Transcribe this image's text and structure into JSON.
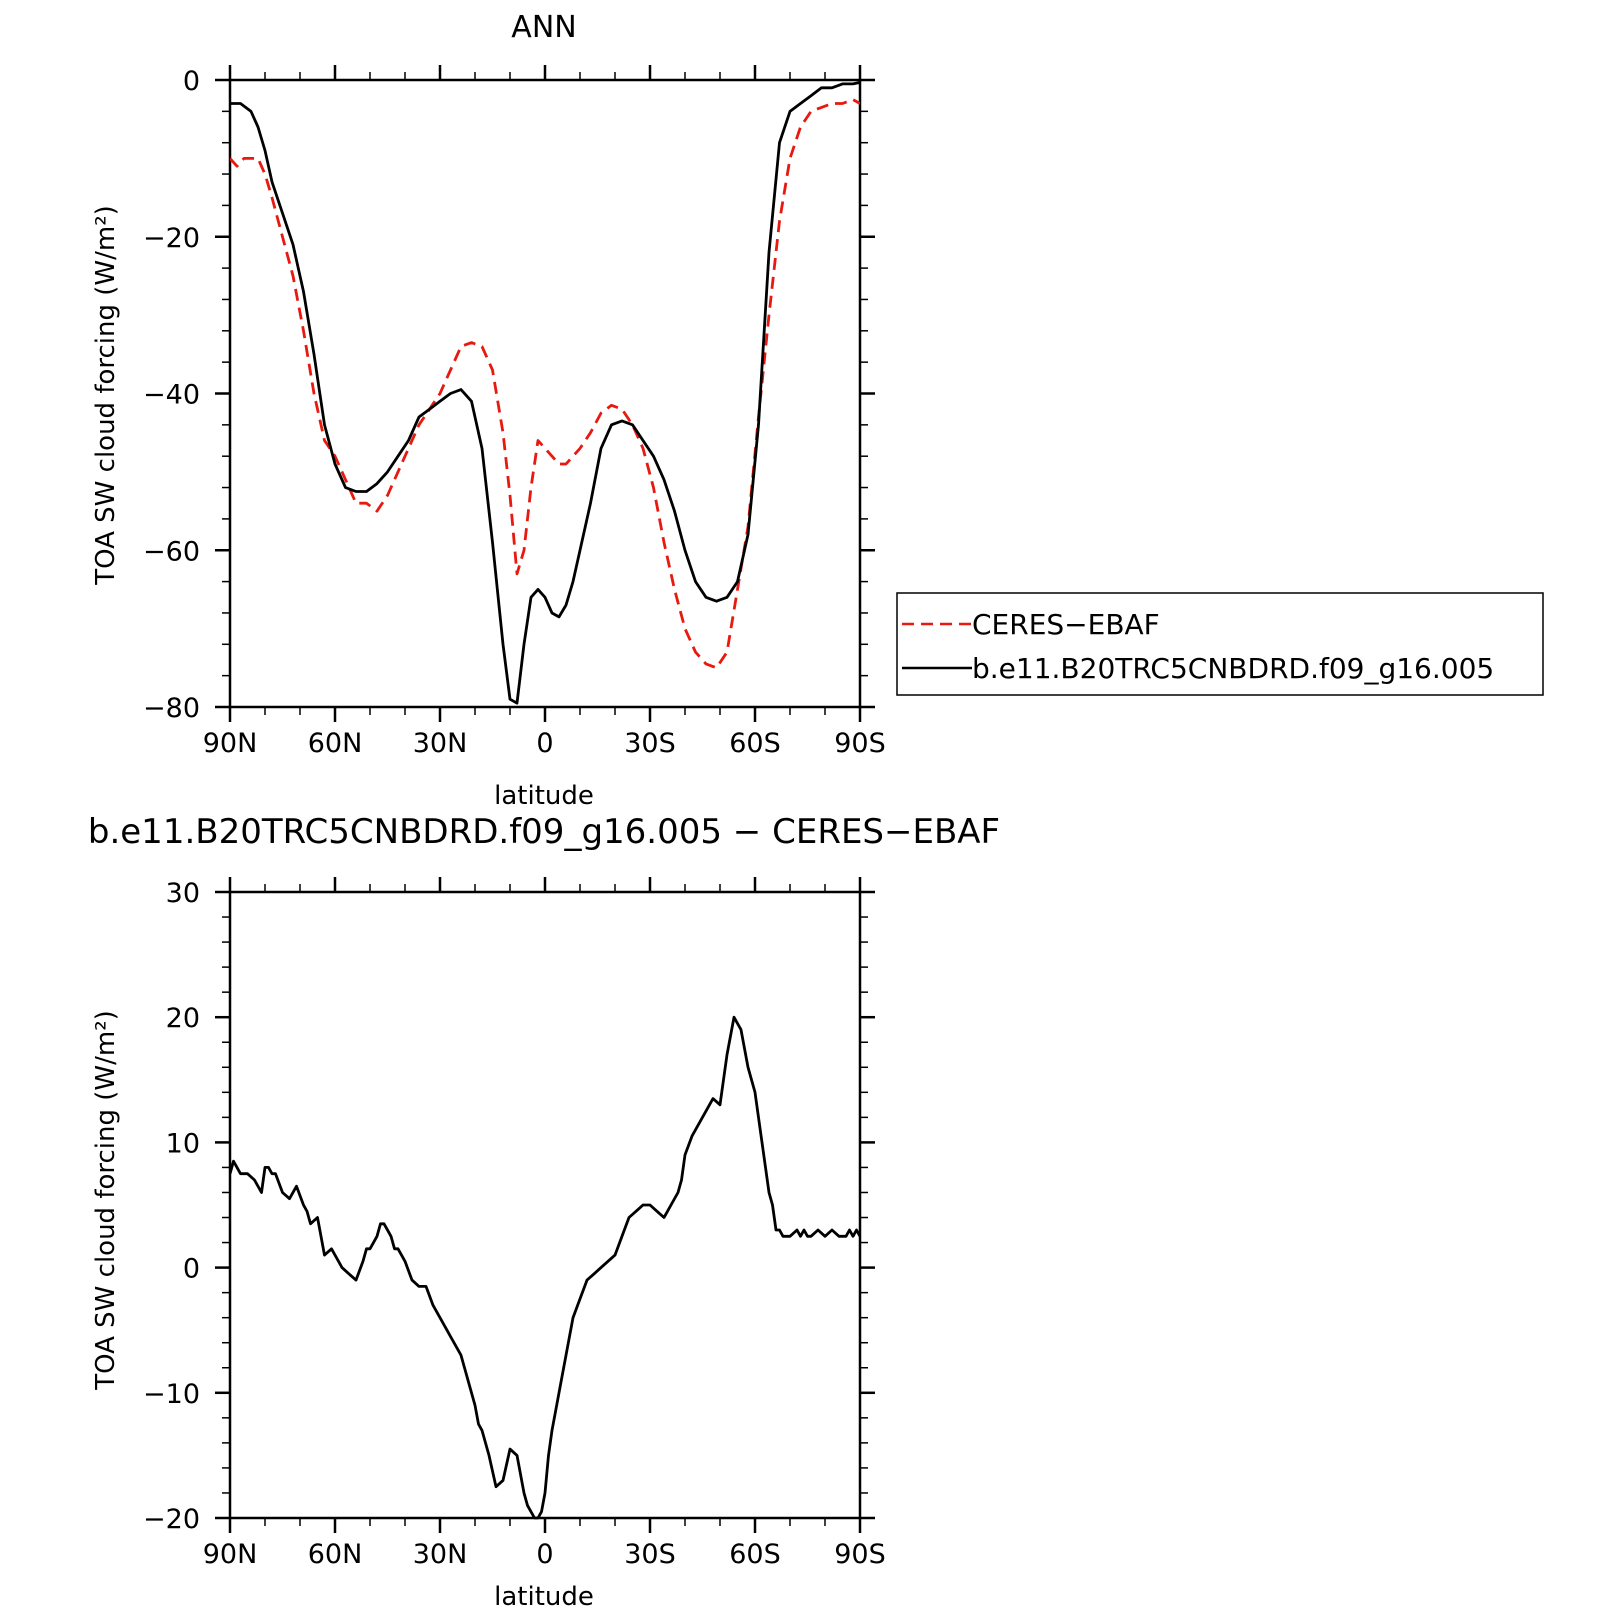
{
  "chart_data": [
    {
      "type": "line",
      "title": "ANN",
      "xlabel": "latitude",
      "ylabel": "TOA SW cloud forcing (W/m²)",
      "xlim": [
        90,
        -90
      ],
      "ylim": [
        -80,
        0
      ],
      "xticks": [
        {
          "value": 90,
          "label": "90N"
        },
        {
          "value": 60,
          "label": "60N"
        },
        {
          "value": 30,
          "label": "30N"
        },
        {
          "value": 0,
          "label": "0"
        },
        {
          "value": -30,
          "label": "30S"
        },
        {
          "value": -60,
          "label": "60S"
        },
        {
          "value": -90,
          "label": "90S"
        }
      ],
      "yticks": [
        {
          "value": 0,
          "label": "0"
        },
        {
          "value": -20,
          "label": "−20"
        },
        {
          "value": -40,
          "label": "−40"
        },
        {
          "value": -60,
          "label": "−60"
        },
        {
          "value": -80,
          "label": "−80"
        }
      ],
      "legend_position": "right",
      "series": [
        {
          "name": "CERES−EBAF",
          "color": "#e8190f",
          "dash": "dashed",
          "x": [
            90,
            88,
            86,
            84,
            82,
            80,
            78,
            75,
            72,
            69,
            66,
            63,
            60,
            57,
            54,
            51,
            48,
            45,
            42,
            39,
            36,
            33,
            30,
            27,
            24,
            21,
            18,
            15,
            12,
            10,
            8,
            6,
            4,
            2,
            0,
            -2,
            -4,
            -6,
            -8,
            -10,
            -13,
            -16,
            -19,
            -22,
            -25,
            -28,
            -31,
            -34,
            -37,
            -40,
            -43,
            -46,
            -49,
            -52,
            -55,
            -58,
            -61,
            -64,
            -67,
            -70,
            -73,
            -76,
            -79,
            -82,
            -85,
            -88,
            -90
          ],
          "y": [
            -10,
            -11,
            -10,
            -10,
            -10,
            -12,
            -15,
            -20,
            -25,
            -32,
            -40,
            -46,
            -48,
            -51,
            -54,
            -54,
            -55,
            -53,
            -50,
            -47,
            -44,
            -42,
            -40,
            -37,
            -34,
            -33.5,
            -34,
            -37,
            -45,
            -53,
            -63,
            -60,
            -52,
            -46,
            -47,
            -48,
            -49,
            -49,
            -48,
            -47,
            -45,
            -42.5,
            -41.5,
            -42,
            -44,
            -47,
            -52,
            -59,
            -65,
            -70,
            -73,
            -74.5,
            -75,
            -73,
            -65,
            -57,
            -43,
            -30,
            -18,
            -10,
            -6,
            -4,
            -3.5,
            -3,
            -3,
            -2.5,
            -3
          ]
        },
        {
          "name": "b.e11.B20TRC5CNBDRD.f09_g16.005",
          "color": "#000000",
          "dash": "solid",
          "x": [
            90,
            87,
            84,
            82,
            80,
            78,
            75,
            72,
            69,
            66,
            63,
            60,
            57,
            54,
            51,
            48,
            45,
            42,
            39,
            36,
            33,
            30,
            27,
            24,
            21,
            18,
            15,
            12,
            10,
            8,
            6,
            4,
            2,
            0,
            -2,
            -4,
            -6,
            -8,
            -10,
            -13,
            -16,
            -19,
            -22,
            -25,
            -28,
            -31,
            -34,
            -37,
            -40,
            -43,
            -46,
            -49,
            -52,
            -55,
            -58,
            -61,
            -64,
            -67,
            -70,
            -73,
            -76,
            -79,
            -82,
            -85,
            -88,
            -90
          ],
          "y": [
            -3,
            -3,
            -4,
            -6,
            -9,
            -13,
            -17,
            -21,
            -27,
            -35,
            -44,
            -49,
            -52,
            -52.5,
            -52.5,
            -51.5,
            -50,
            -48,
            -46,
            -43,
            -42,
            -41,
            -40,
            -39.5,
            -41,
            -47,
            -59,
            -72,
            -79,
            -79.5,
            -72,
            -66,
            -65,
            -66,
            -68,
            -68.5,
            -67,
            -64,
            -60,
            -54,
            -47,
            -44,
            -43.5,
            -44,
            -46,
            -48,
            -51,
            -55,
            -60,
            -64,
            -66,
            -66.5,
            -66,
            -64,
            -58,
            -44,
            -22,
            -8,
            -4,
            -3,
            -2,
            -1,
            -1,
            -0.5,
            -0.5,
            -0.3
          ]
        }
      ]
    },
    {
      "type": "line",
      "title": "b.e11.B20TRC5CNBDRD.f09_g16.005 − CERES−EBAF",
      "xlabel": "latitude",
      "ylabel": "TOA SW cloud forcing (W/m²)",
      "xlim": [
        90,
        -90
      ],
      "ylim": [
        -20,
        30
      ],
      "xticks": [
        {
          "value": 90,
          "label": "90N"
        },
        {
          "value": 60,
          "label": "60N"
        },
        {
          "value": 30,
          "label": "30N"
        },
        {
          "value": 0,
          "label": "0"
        },
        {
          "value": -30,
          "label": "30S"
        },
        {
          "value": -60,
          "label": "60S"
        },
        {
          "value": -90,
          "label": "90S"
        }
      ],
      "yticks": [
        {
          "value": 30,
          "label": "30"
        },
        {
          "value": 20,
          "label": "20"
        },
        {
          "value": 10,
          "label": "10"
        },
        {
          "value": 0,
          "label": "0"
        },
        {
          "value": -10,
          "label": "−10"
        },
        {
          "value": -20,
          "label": "−20"
        }
      ],
      "series": [
        {
          "color": "#000000",
          "dash": "solid",
          "x": [
            90,
            89,
            88,
            87,
            85,
            83,
            81,
            80,
            79,
            78,
            77,
            75,
            73,
            71,
            69,
            68,
            67,
            65,
            63,
            61,
            60,
            59,
            58,
            56,
            54,
            52,
            51,
            50,
            48,
            47,
            46,
            45,
            44,
            43,
            42,
            40,
            38,
            36,
            35,
            34,
            32,
            30,
            28,
            27,
            26,
            24,
            22,
            20,
            19,
            18,
            16,
            14,
            12,
            10,
            8,
            6,
            5,
            4,
            3,
            2,
            1,
            0,
            -1,
            -2,
            -3,
            -4,
            -5,
            -6,
            -7,
            -8,
            -10,
            -12,
            -14,
            -16,
            -18,
            -20,
            -22,
            -24,
            -26,
            -28,
            -30,
            -32,
            -34,
            -35,
            -36,
            -38,
            -39,
            -40,
            -42,
            -44,
            -46,
            -48,
            -50,
            -52,
            -54,
            -56,
            -58,
            -60,
            -61,
            -62,
            -63,
            -64,
            -65,
            -66,
            -67,
            -68,
            -70,
            -72,
            -73,
            -74,
            -75,
            -76,
            -78,
            -80,
            -82,
            -84,
            -86,
            -87,
            -88,
            -89,
            -90
          ],
          "y": [
            7.5,
            8.5,
            8,
            7.5,
            7.5,
            7,
            6,
            8,
            8,
            7.5,
            7.5,
            6,
            5.5,
            6.5,
            5,
            4.5,
            3.5,
            4,
            1,
            1.5,
            1,
            0.5,
            0,
            -0.5,
            -1,
            0.5,
            1.5,
            1.5,
            2.5,
            3.5,
            3.5,
            3,
            2.5,
            1.5,
            1.5,
            0.5,
            -1,
            -1.5,
            -1.5,
            -1.5,
            -3,
            -4,
            -5,
            -5.5,
            -6,
            -7,
            -9,
            -11,
            -12.5,
            -13,
            -15,
            -17.5,
            -17,
            -14.5,
            -15,
            -18,
            -19,
            -19.5,
            -20,
            -20,
            -19.5,
            -18,
            -15,
            -13,
            -11.5,
            -10,
            -8.5,
            -7,
            -5.5,
            -4,
            -2.5,
            -1,
            -0.5,
            0,
            0.5,
            1,
            2.5,
            4,
            4.5,
            5,
            5,
            4.5,
            4,
            4.5,
            5,
            6,
            7,
            9,
            10.5,
            11.5,
            12.5,
            13.5,
            13,
            17,
            20,
            19,
            16,
            14,
            12,
            10,
            8,
            6,
            5,
            3,
            3,
            2.5,
            2.5,
            3,
            2.5,
            3,
            2.5,
            2.5,
            3,
            2.5,
            3,
            2.5,
            2.5,
            3,
            2.5,
            3,
            2.5
          ]
        }
      ]
    }
  ]
}
